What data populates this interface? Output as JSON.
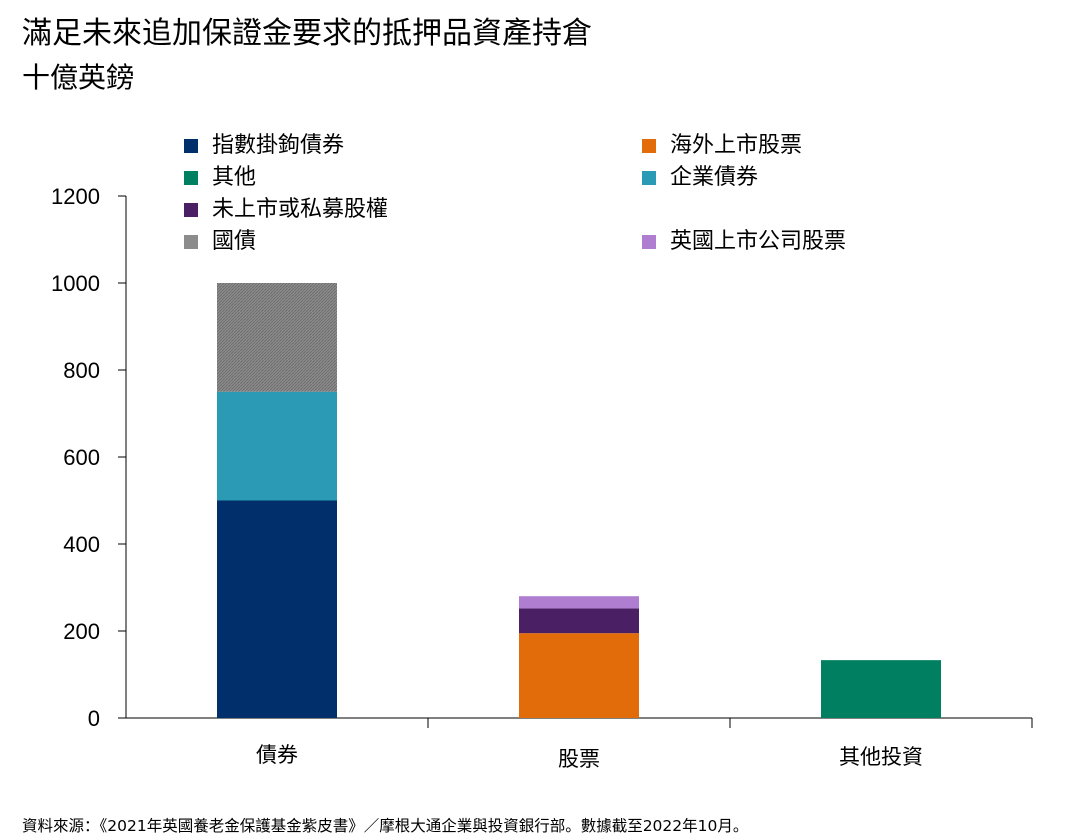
{
  "chart_data": {
    "type": "bar",
    "stacked": true,
    "title": "滿足未來追加保證金要求的抵押品資產持倉",
    "subtitle": "十億英鎊",
    "categories": [
      "債券",
      "股票",
      "其他投資"
    ],
    "ylim": [
      0,
      1200
    ],
    "yticks": [
      0,
      200,
      400,
      600,
      800,
      1000,
      1200
    ],
    "grid": false,
    "legend_position": "top",
    "series": [
      {
        "name": "指數掛鉤債券",
        "color": "#002f6c",
        "values": [
          500,
          0,
          0
        ]
      },
      {
        "name": "企業債券",
        "color": "#2a9ab5",
        "values": [
          250,
          0,
          0
        ]
      },
      {
        "name": "國債",
        "color": "#8c8c8c",
        "values": [
          250,
          0,
          0
        ]
      },
      {
        "name": "海外上市股票",
        "color": "#e36c0a",
        "values": [
          0,
          195,
          0
        ]
      },
      {
        "name": "未上市或私募股權",
        "color": "#4a1f63",
        "values": [
          0,
          57,
          0
        ]
      },
      {
        "name": "英國上市公司股票",
        "color": "#b07ed0",
        "values": [
          0,
          28,
          0
        ]
      },
      {
        "name": "其他",
        "color": "#008060",
        "values": [
          0,
          0,
          133
        ]
      }
    ],
    "legend": [
      {
        "name": "指數掛鉤債券",
        "color": "#002f6c"
      },
      {
        "name": "海外上市股票",
        "color": "#e36c0a"
      },
      {
        "name": "其他",
        "color": "#008060"
      },
      {
        "name": "企業債券",
        "color": "#2a9ab5"
      },
      {
        "name": "未上市或私募股權",
        "color": "#4a1f63"
      },
      {
        "name": "國債",
        "color": "#8c8c8c"
      },
      {
        "name": "英國上市公司股票",
        "color": "#b07ed0"
      }
    ]
  },
  "source": "資料來源：《2021年英國養老金保護基金紫皮書》／摩根大通企業與投資銀行部。數據截至2022年10月。"
}
